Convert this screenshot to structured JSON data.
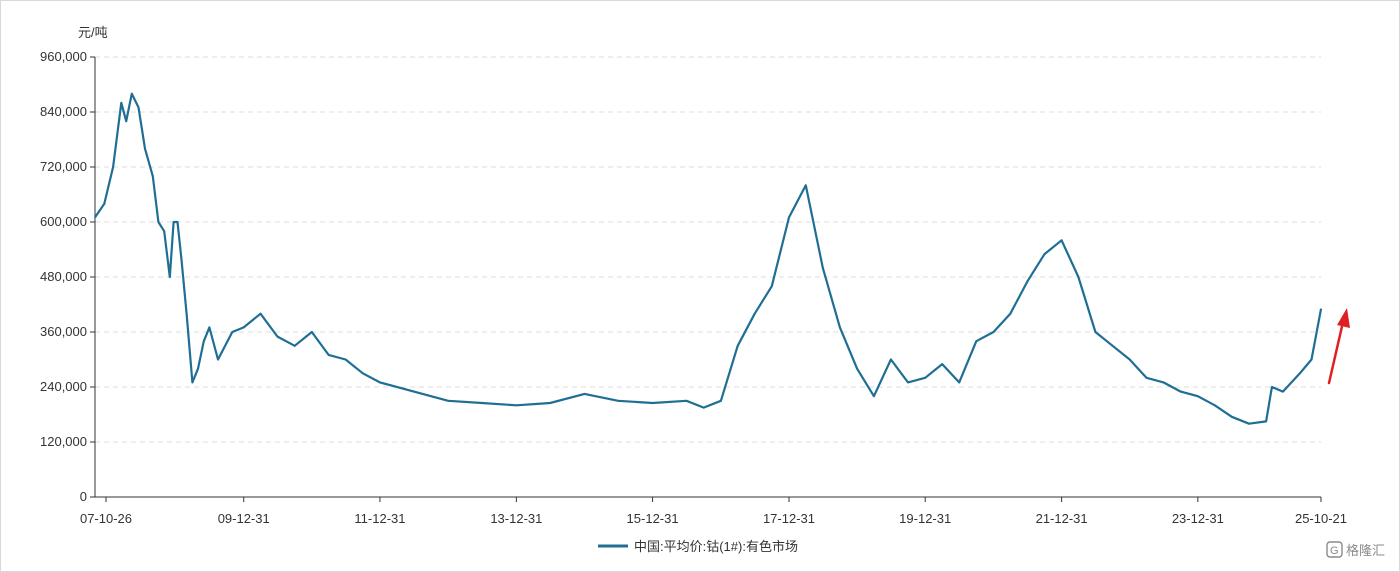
{
  "chart_data": {
    "type": "line",
    "unit_label": "元/吨",
    "x_tick_labels": [
      "07-10-26",
      "09-12-31",
      "11-12-31",
      "13-12-31",
      "15-12-31",
      "17-12-31",
      "19-12-31",
      "21-12-31",
      "23-12-31",
      "25-10-21"
    ],
    "x_range": [
      "2007-10-26",
      "2025-10-21"
    ],
    "ylim": [
      0,
      960000
    ],
    "y_ticks": [
      0,
      120000,
      240000,
      360000,
      480000,
      600000,
      720000,
      840000,
      960000
    ],
    "y_tick_labels": [
      "0",
      "120,000",
      "240,000",
      "360,000",
      "480,000",
      "600,000",
      "720,000",
      "840,000",
      "960,000"
    ],
    "grid": "horizontal-dashed",
    "legend_position": "bottom-center",
    "series": [
      {
        "name": "中国:平均价:钴(1#):有色市场",
        "color": "#1f6e94",
        "x": [
          "2007-10-26",
          "2007-12-15",
          "2008-01-31",
          "2008-03-15",
          "2008-04-10",
          "2008-05-10",
          "2008-06-15",
          "2008-07-20",
          "2008-08-31",
          "2008-09-30",
          "2008-10-31",
          "2008-11-30",
          "2008-12-20",
          "2009-01-10",
          "2009-01-31",
          "2009-02-28",
          "2009-03-31",
          "2009-04-30",
          "2009-05-31",
          "2009-06-30",
          "2009-08-15",
          "2009-10-31",
          "2009-12-31",
          "2010-03-31",
          "2010-06-30",
          "2010-09-30",
          "2010-12-31",
          "2011-03-31",
          "2011-06-30",
          "2011-09-30",
          "2011-12-31",
          "2012-06-30",
          "2012-12-31",
          "2013-06-30",
          "2013-12-31",
          "2014-06-30",
          "2014-12-31",
          "2015-06-30",
          "2015-12-31",
          "2016-06-30",
          "2016-09-30",
          "2016-12-31",
          "2017-03-31",
          "2017-06-30",
          "2017-09-30",
          "2017-12-31",
          "2018-03-31",
          "2018-06-30",
          "2018-09-30",
          "2018-12-31",
          "2019-03-31",
          "2019-06-30",
          "2019-09-30",
          "2019-12-31",
          "2020-03-31",
          "2020-06-30",
          "2020-09-30",
          "2020-12-31",
          "2021-03-31",
          "2021-06-30",
          "2021-09-30",
          "2021-12-31",
          "2022-03-31",
          "2022-06-30",
          "2022-09-30",
          "2022-12-31",
          "2023-03-31",
          "2023-06-30",
          "2023-09-30",
          "2023-12-31",
          "2024-03-31",
          "2024-06-30",
          "2024-09-30",
          "2024-12-31",
          "2025-01-31",
          "2025-03-31",
          "2025-06-30",
          "2025-08-31",
          "2025-10-21"
        ],
        "values": [
          610000,
          640000,
          720000,
          860000,
          820000,
          880000,
          850000,
          760000,
          700000,
          600000,
          580000,
          480000,
          600000,
          600000,
          520000,
          400000,
          250000,
          280000,
          340000,
          370000,
          300000,
          360000,
          370000,
          400000,
          350000,
          330000,
          360000,
          310000,
          300000,
          270000,
          250000,
          230000,
          210000,
          205000,
          200000,
          205000,
          225000,
          210000,
          205000,
          210000,
          195000,
          210000,
          330000,
          400000,
          460000,
          610000,
          680000,
          500000,
          370000,
          280000,
          220000,
          300000,
          250000,
          260000,
          290000,
          250000,
          340000,
          360000,
          400000,
          470000,
          530000,
          560000,
          480000,
          360000,
          330000,
          300000,
          260000,
          250000,
          230000,
          220000,
          200000,
          175000,
          160000,
          165000,
          240000,
          230000,
          270000,
          300000,
          410000
        ]
      }
    ]
  },
  "watermark": "格隆汇"
}
